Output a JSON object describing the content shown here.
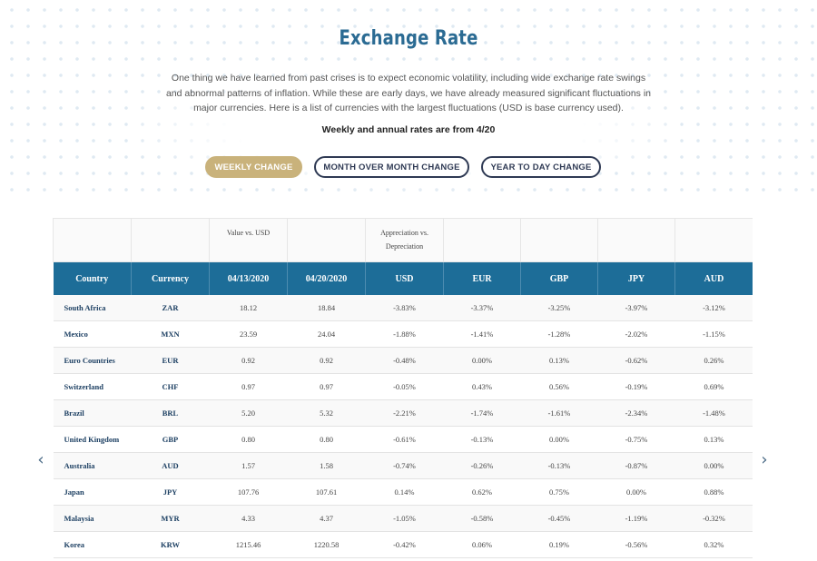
{
  "header": {
    "title": "Exchange Rate",
    "intro": "One thing we have learned from past crises is to expect economic volatility, including wide exchange rate swings and abnormal patterns of inflation. While these are early days, we have already measured significant fluctuations in major currencies. Here is a list of currencies with the largest fluctuations (USD is base currency used).",
    "subnote": "Weekly and annual rates are from 4/20"
  },
  "tabs": [
    {
      "label": "WEEKLY CHANGE",
      "active": true
    },
    {
      "label": "MONTH OVER MONTH CHANGE",
      "active": false
    },
    {
      "label": "YEAR TO DAY CHANGE",
      "active": false
    }
  ],
  "table": {
    "group_headers": {
      "value_vs_usd": "Value vs. USD",
      "appreciation": "Appreciation vs. Depreciation"
    },
    "columns": [
      "Country",
      "Currency",
      "04/13/2020",
      "04/20/2020",
      "USD",
      "EUR",
      "GBP",
      "JPY",
      "AUD"
    ],
    "rows": [
      [
        "South Africa",
        "ZAR",
        "18.12",
        "18.84",
        "-3.83%",
        "-3.37%",
        "-3.25%",
        "-3.97%",
        "-3.12%"
      ],
      [
        "Mexico",
        "MXN",
        "23.59",
        "24.04",
        "-1.88%",
        "-1.41%",
        "-1.28%",
        "-2.02%",
        "-1.15%"
      ],
      [
        "Euro Countries",
        "EUR",
        "0.92",
        "0.92",
        "-0.48%",
        "0.00%",
        "0.13%",
        "-0.62%",
        "0.26%"
      ],
      [
        "Switzerland",
        "CHF",
        "0.97",
        "0.97",
        "-0.05%",
        "0.43%",
        "0.56%",
        "-0.19%",
        "0.69%"
      ],
      [
        "Brazil",
        "BRL",
        "5.20",
        "5.32",
        "-2.21%",
        "-1.74%",
        "-1.61%",
        "-2.34%",
        "-1.48%"
      ],
      [
        "United Kingdom",
        "GBP",
        "0.80",
        "0.80",
        "-0.61%",
        "-0.13%",
        "0.00%",
        "-0.75%",
        "0.13%"
      ],
      [
        "Australia",
        "AUD",
        "1.57",
        "1.58",
        "-0.74%",
        "-0.26%",
        "-0.13%",
        "-0.87%",
        "0.00%"
      ],
      [
        "Japan",
        "JPY",
        "107.76",
        "107.61",
        "0.14%",
        "0.62%",
        "0.75%",
        "0.00%",
        "0.88%"
      ],
      [
        "Malaysia",
        "MYR",
        "4.33",
        "4.37",
        "-1.05%",
        "-0.58%",
        "-0.45%",
        "-1.19%",
        "-0.32%"
      ],
      [
        "Korea",
        "KRW",
        "1215.46",
        "1220.58",
        "-0.42%",
        "0.06%",
        "0.19%",
        "-0.56%",
        "0.32%"
      ]
    ]
  },
  "nav": {
    "prev_icon": "chevron-left-icon",
    "next_icon": "chevron-right-icon",
    "prev_glyph": "‹",
    "next_glyph": "›"
  },
  "colors": {
    "title": "#2b6b93",
    "active_tab": "#c9b27b",
    "inactive_tab_border": "#2f3a54",
    "table_header": "#1d6d98",
    "positive": "#3c9a1e",
    "negative": "#d9261c"
  }
}
